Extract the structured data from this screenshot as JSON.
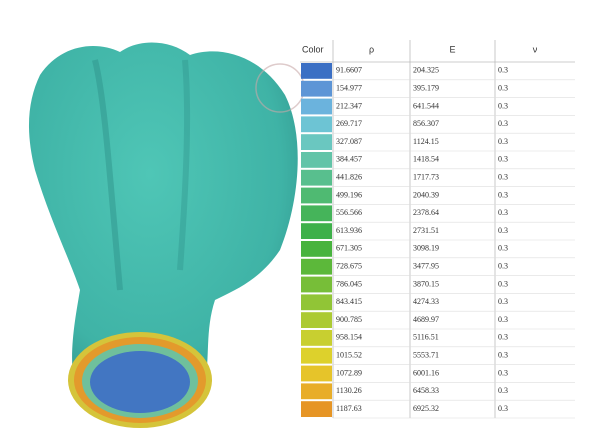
{
  "table": {
    "headers": [
      "Color",
      "ρ",
      "E",
      "ν"
    ],
    "rows": [
      {
        "color": "#3b6fc4",
        "rho": "91.6607",
        "E": "204.325",
        "nu": "0.3"
      },
      {
        "color": "#5d95d6",
        "rho": "154.977",
        "E": "395.179",
        "nu": "0.3"
      },
      {
        "color": "#6bb3dd",
        "rho": "212.347",
        "E": "641.544",
        "nu": "0.3"
      },
      {
        "color": "#6dc4d4",
        "rho": "269.717",
        "E": "856.307",
        "nu": "0.3"
      },
      {
        "color": "#6ac7c0",
        "rho": "327.087",
        "E": "1124.15",
        "nu": "0.3"
      },
      {
        "color": "#62c4a8",
        "rho": "384.457",
        "E": "1418.54",
        "nu": "0.3"
      },
      {
        "color": "#58bf8e",
        "rho": "441.826",
        "E": "1717.73",
        "nu": "0.3"
      },
      {
        "color": "#4fba72",
        "rho": "499.196",
        "E": "2040.39",
        "nu": "0.3"
      },
      {
        "color": "#45b45a",
        "rho": "556.566",
        "E": "2378.64",
        "nu": "0.3"
      },
      {
        "color": "#3eb04a",
        "rho": "613.936",
        "E": "2731.51",
        "nu": "0.3"
      },
      {
        "color": "#48b33e",
        "rho": "671.305",
        "E": "3098.19",
        "nu": "0.3"
      },
      {
        "color": "#5cb83a",
        "rho": "728.675",
        "E": "3477.95",
        "nu": "0.3"
      },
      {
        "color": "#77be38",
        "rho": "786.045",
        "E": "3870.15",
        "nu": "0.3"
      },
      {
        "color": "#91c536",
        "rho": "843.415",
        "E": "4274.33",
        "nu": "0.3"
      },
      {
        "color": "#acca33",
        "rho": "900.785",
        "E": "4689.97",
        "nu": "0.3"
      },
      {
        "color": "#c8cf30",
        "rho": "958.154",
        "E": "5116.51",
        "nu": "0.3"
      },
      {
        "color": "#ddd12c",
        "rho": "1015.52",
        "E": "5553.71",
        "nu": "0.3"
      },
      {
        "color": "#e6c42a",
        "rho": "1072.89",
        "E": "6001.16",
        "nu": "0.3"
      },
      {
        "color": "#e8ad28",
        "rho": "1130.26",
        "E": "6458.33",
        "nu": "0.3"
      },
      {
        "color": "#e69525",
        "rho": "1187.63",
        "E": "6925.32",
        "nu": "0.3"
      }
    ]
  }
}
